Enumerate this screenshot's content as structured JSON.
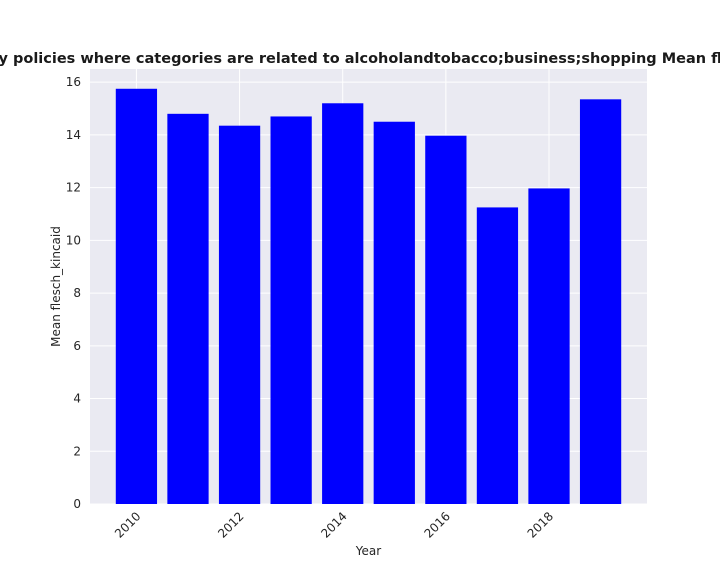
{
  "chart_data": {
    "type": "bar",
    "title": "Mean flesch_kincaid in privacy policies where categories are related to alcoholandtobacco;business;shopping Mean flesch_kincaid in privacy policies",
    "xlabel": "Year",
    "ylabel": "Mean flesch_kincaid",
    "x": [
      2010,
      2011,
      2012,
      2013,
      2014,
      2015,
      2016,
      2017,
      2018,
      2019
    ],
    "values": [
      15.75,
      14.8,
      14.35,
      14.7,
      15.2,
      14.5,
      13.97,
      11.25,
      11.97,
      15.35
    ],
    "xlim": [
      2009.1,
      2019.9
    ],
    "ylim": [
      0,
      16.5
    ],
    "xticks": [
      2010,
      2012,
      2014,
      2016,
      2018
    ],
    "yticks": [
      0,
      2,
      4,
      6,
      8,
      10,
      12,
      14,
      16
    ],
    "grid": true,
    "colors": {
      "bar": "#0000ff",
      "plot_background": "#eaeaf2",
      "grid": "#ffffff"
    }
  }
}
